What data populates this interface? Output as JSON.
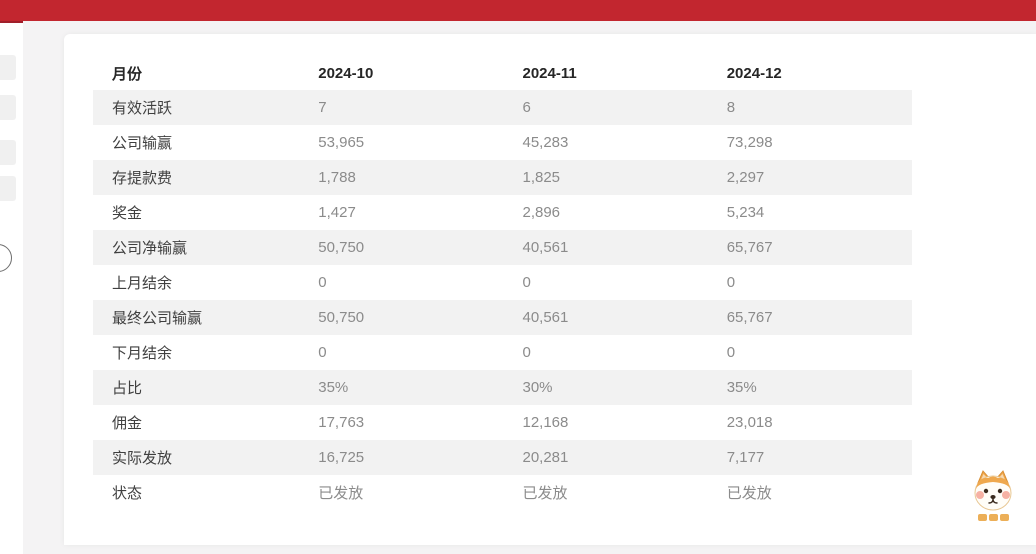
{
  "page": {
    "topbar_color": "#c2262f",
    "topbar_border_color": "#a01f2a",
    "workspace_background": "#f4f3f4",
    "stripe_color": "#f2f2f2"
  },
  "table": {
    "header": {
      "label": "月份",
      "columns": [
        "2024-10",
        "2024-11",
        "2024-12"
      ]
    },
    "rows": [
      {
        "label": "有效活跃",
        "values": [
          "7",
          "6",
          "8"
        ]
      },
      {
        "label": "公司输赢",
        "values": [
          "53,965",
          "45,283",
          "73,298"
        ]
      },
      {
        "label": "存提款费",
        "values": [
          "1,788",
          "1,825",
          "2,297"
        ]
      },
      {
        "label": "奖金",
        "values": [
          "1,427",
          "2,896",
          "5,234"
        ]
      },
      {
        "label": "公司净输赢",
        "values": [
          "50,750",
          "40,561",
          "65,767"
        ]
      },
      {
        "label": "上月结余",
        "values": [
          "0",
          "0",
          "0"
        ]
      },
      {
        "label": "最终公司输赢",
        "values": [
          "50,750",
          "40,561",
          "65,767"
        ]
      },
      {
        "label": "下月结余",
        "values": [
          "0",
          "0",
          "0"
        ]
      },
      {
        "label": "占比",
        "values": [
          "35%",
          "30%",
          "35%"
        ]
      },
      {
        "label": "佣金",
        "values": [
          "17,763",
          "12,168",
          "23,018"
        ]
      },
      {
        "label": "实际发放",
        "values": [
          "16,725",
          "20,281",
          "7,177"
        ]
      },
      {
        "label": "状态",
        "values": [
          "已发放",
          "已发放",
          "已发放"
        ]
      }
    ]
  },
  "mascot": {
    "kind": "shiba-dog-sticker"
  }
}
